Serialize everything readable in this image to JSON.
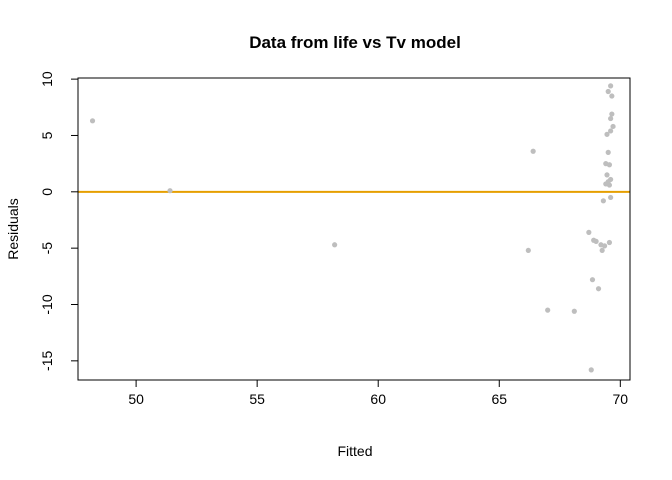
{
  "chart_data": {
    "type": "scatter",
    "title": "Data from life vs Tv model",
    "xlabel": "Fitted",
    "ylabel": "Residuals",
    "xlim": [
      47.6,
      70.4
    ],
    "ylim": [
      -16.7,
      10.1
    ],
    "xticks": [
      50,
      55,
      60,
      65,
      70
    ],
    "yticks": [
      -15,
      -10,
      -5,
      0,
      5,
      10
    ],
    "grid": false,
    "point_color": "#bebebe",
    "reference_line": {
      "y": 0,
      "color": "#e69f00"
    },
    "points": [
      {
        "x": 48.2,
        "y": 6.3
      },
      {
        "x": 51.4,
        "y": 0.1
      },
      {
        "x": 58.2,
        "y": -4.7
      },
      {
        "x": 66.2,
        "y": -5.2
      },
      {
        "x": 66.4,
        "y": 3.6
      },
      {
        "x": 67.0,
        "y": -10.5
      },
      {
        "x": 68.1,
        "y": -10.6
      },
      {
        "x": 68.7,
        "y": -3.6
      },
      {
        "x": 68.8,
        "y": -15.8
      },
      {
        "x": 68.85,
        "y": -7.8
      },
      {
        "x": 68.9,
        "y": -4.3
      },
      {
        "x": 69.0,
        "y": -4.4
      },
      {
        "x": 69.1,
        "y": -8.6
      },
      {
        "x": 69.2,
        "y": -4.7
      },
      {
        "x": 69.25,
        "y": -5.2
      },
      {
        "x": 69.3,
        "y": -0.8
      },
      {
        "x": 69.35,
        "y": -4.8
      },
      {
        "x": 69.4,
        "y": 0.7
      },
      {
        "x": 69.4,
        "y": 2.5
      },
      {
        "x": 69.45,
        "y": 1.5
      },
      {
        "x": 69.45,
        "y": 5.1
      },
      {
        "x": 69.5,
        "y": 0.9
      },
      {
        "x": 69.5,
        "y": 3.5
      },
      {
        "x": 69.5,
        "y": 8.9
      },
      {
        "x": 69.55,
        "y": -4.5
      },
      {
        "x": 69.55,
        "y": 0.6
      },
      {
        "x": 69.55,
        "y": 2.4
      },
      {
        "x": 69.6,
        "y": 9.4
      },
      {
        "x": 69.6,
        "y": 6.5
      },
      {
        "x": 69.6,
        "y": 5.4
      },
      {
        "x": 69.6,
        "y": 1.1
      },
      {
        "x": 69.6,
        "y": -0.5
      },
      {
        "x": 69.65,
        "y": 8.5
      },
      {
        "x": 69.65,
        "y": 6.9
      },
      {
        "x": 69.7,
        "y": 5.8
      }
    ]
  }
}
